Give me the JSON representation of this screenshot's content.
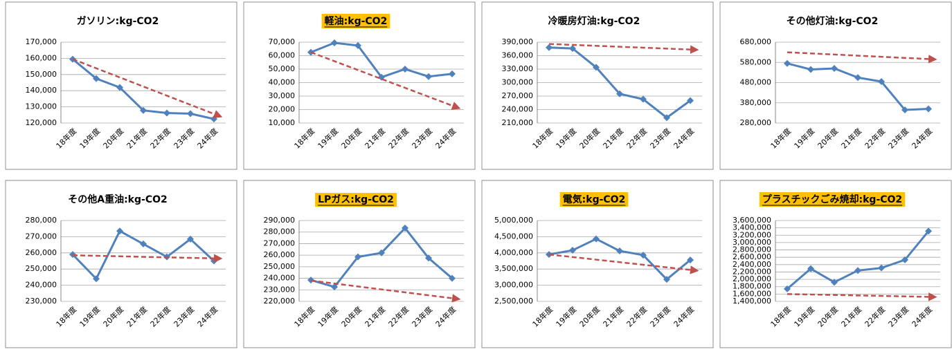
{
  "chart_data": [
    {
      "type": "line",
      "title": "ガソリン:kg-CO2",
      "highlight": false,
      "categories": [
        "18年度",
        "19年度",
        "20年度",
        "21年度",
        "22年度",
        "23年度",
        "24年度"
      ],
      "values": [
        159500,
        147500,
        142000,
        127800,
        126200,
        125800,
        122500
      ],
      "color": "#4f81bd",
      "trend": {
        "color": "#c0504d",
        "values": [
          159500,
          124000
        ]
      },
      "ylim": [
        120000,
        170000
      ],
      "yticks": [
        {
          "value": 120000,
          "label": "120,000"
        },
        {
          "value": 130000,
          "label": "130,000"
        },
        {
          "value": 140000,
          "label": "140,000"
        },
        {
          "value": 150000,
          "label": "150,000"
        },
        {
          "value": 160000,
          "label": "160,000"
        },
        {
          "value": 170000,
          "label": "170,000"
        }
      ],
      "grid": true
    },
    {
      "type": "line",
      "title": "軽油:kg-CO2",
      "highlight": true,
      "categories": [
        "18年度",
        "19年度",
        "20年度",
        "21年度",
        "22年度",
        "23年度",
        "24年度"
      ],
      "values": [
        62500,
        69500,
        67500,
        44000,
        50000,
        44500,
        46500
      ],
      "color": "#4f81bd",
      "trend": {
        "color": "#c0504d",
        "values": [
          62500,
          21000
        ]
      },
      "ylim": [
        10000,
        70000
      ],
      "yticks": [
        {
          "value": 10000,
          "label": "10,000"
        },
        {
          "value": 20000,
          "label": "20,000"
        },
        {
          "value": 30000,
          "label": "30,000"
        },
        {
          "value": 40000,
          "label": "40,000"
        },
        {
          "value": 50000,
          "label": "50,000"
        },
        {
          "value": 60000,
          "label": "60,000"
        },
        {
          "value": 70000,
          "label": "70,000"
        }
      ],
      "grid": true
    },
    {
      "type": "line",
      "title": "冷暖房灯油:kg-CO2",
      "highlight": false,
      "categories": [
        "18年度",
        "19年度",
        "20年度",
        "21年度",
        "22年度",
        "23年度",
        "24年度"
      ],
      "values": [
        378000,
        376000,
        334000,
        275000,
        263000,
        222000,
        260000
      ],
      "color": "#4f81bd",
      "trend": {
        "color": "#c0504d",
        "values": [
          386000,
          373000
        ]
      },
      "ylim": [
        210000,
        390000
      ],
      "yticks": [
        {
          "value": 210000,
          "label": "210,000"
        },
        {
          "value": 240000,
          "label": "240,000"
        },
        {
          "value": 270000,
          "label": "270,000"
        },
        {
          "value": 300000,
          "label": "300,000"
        },
        {
          "value": 330000,
          "label": "330,000"
        },
        {
          "value": 360000,
          "label": "360,000"
        },
        {
          "value": 390000,
          "label": "390,000"
        }
      ],
      "grid": true
    },
    {
      "type": "line",
      "title": "その他灯油:kg-CO2",
      "highlight": false,
      "categories": [
        "18年度",
        "19年度",
        "20年度",
        "21年度",
        "22年度",
        "23年度",
        "24年度"
      ],
      "values": [
        575000,
        545000,
        550000,
        505000,
        485000,
        345000,
        350000
      ],
      "color": "#4f81bd",
      "trend": {
        "color": "#c0504d",
        "values": [
          630000,
          595000
        ]
      },
      "ylim": [
        280000,
        680000
      ],
      "yticks": [
        {
          "value": 280000,
          "label": "280,000"
        },
        {
          "value": 380000,
          "label": "380,000"
        },
        {
          "value": 480000,
          "label": "480,000"
        },
        {
          "value": 580000,
          "label": "580,000"
        },
        {
          "value": 680000,
          "label": "680,000"
        }
      ],
      "grid": true
    },
    {
      "type": "line",
      "title": "その他A重油:kg-CO2",
      "highlight": false,
      "categories": [
        "18年度",
        "19年度",
        "20年度",
        "21年度",
        "22年度",
        "23年度",
        "24年度"
      ],
      "values": [
        259000,
        244000,
        273500,
        265500,
        257500,
        268500,
        255000
      ],
      "color": "#4f81bd",
      "trend": {
        "color": "#c0504d",
        "values": [
          258500,
          256500
        ]
      },
      "ylim": [
        230000,
        280000
      ],
      "yticks": [
        {
          "value": 230000,
          "label": "230,000"
        },
        {
          "value": 240000,
          "label": "240,000"
        },
        {
          "value": 250000,
          "label": "250,000"
        },
        {
          "value": 260000,
          "label": "260,000"
        },
        {
          "value": 270000,
          "label": "270,000"
        },
        {
          "value": 280000,
          "label": "280,000"
        }
      ],
      "grid": true
    },
    {
      "type": "line",
      "title": "LPガス:kg-CO2",
      "highlight": true,
      "categories": [
        "18年度",
        "19年度",
        "20年度",
        "21年度",
        "22年度",
        "23年度",
        "24年度"
      ],
      "values": [
        238500,
        232500,
        258500,
        262000,
        283500,
        257500,
        240000
      ],
      "color": "#4f81bd",
      "trend": {
        "color": "#c0504d",
        "values": [
          238000,
          222000
        ]
      },
      "ylim": [
        220000,
        290000
      ],
      "yticks": [
        {
          "value": 220000,
          "label": "220,000"
        },
        {
          "value": 230000,
          "label": "230,000"
        },
        {
          "value": 240000,
          "label": "240,000"
        },
        {
          "value": 250000,
          "label": "250,000"
        },
        {
          "value": 260000,
          "label": "260,000"
        },
        {
          "value": 270000,
          "label": "270,000"
        },
        {
          "value": 280000,
          "label": "280,000"
        },
        {
          "value": 290000,
          "label": "290,000"
        }
      ],
      "grid": true
    },
    {
      "type": "line",
      "title": "電気:kg-CO2",
      "highlight": true,
      "categories": [
        "18年度",
        "19年度",
        "20年度",
        "21年度",
        "22年度",
        "23年度",
        "24年度"
      ],
      "values": [
        3950000,
        4080000,
        4430000,
        4060000,
        3930000,
        3180000,
        3780000
      ],
      "color": "#4f81bd",
      "trend": {
        "color": "#c0504d",
        "values": [
          3950000,
          3450000
        ]
      },
      "ylim": [
        2500000,
        5000000
      ],
      "yticks": [
        {
          "value": 2500000,
          "label": "2,500,000"
        },
        {
          "value": 3000000,
          "label": "3,000,000"
        },
        {
          "value": 3500000,
          "label": "3,500,000"
        },
        {
          "value": 4000000,
          "label": "4,000,000"
        },
        {
          "value": 4500000,
          "label": "4,500,000"
        },
        {
          "value": 5000000,
          "label": "5,000,000"
        }
      ],
      "grid": true
    },
    {
      "type": "line",
      "title": "プラスチックごみ焼却:kg-CO2",
      "highlight": true,
      "categories": [
        "18年度",
        "19年度",
        "20年度",
        "21年度",
        "22年度",
        "23年度",
        "24年度"
      ],
      "values": [
        1740000,
        2290000,
        1920000,
        2240000,
        2310000,
        2530000,
        3310000
      ],
      "color": "#4f81bd",
      "trend": {
        "color": "#c0504d",
        "values": [
          1600000,
          1520000
        ]
      },
      "ylim": [
        1400000,
        3600000
      ],
      "yticks": [
        {
          "value": 1400000,
          "label": "1,400,000"
        },
        {
          "value": 1600000,
          "label": "1,600,000"
        },
        {
          "value": 1800000,
          "label": "1,800,000"
        },
        {
          "value": 2000000,
          "label": "2,000,000"
        },
        {
          "value": 2200000,
          "label": "2,200,000"
        },
        {
          "value": 2400000,
          "label": "2,400,000"
        },
        {
          "value": 2600000,
          "label": "2,600,000"
        },
        {
          "value": 2800000,
          "label": "2,800,000"
        },
        {
          "value": 3000000,
          "label": "3,000,000"
        },
        {
          "value": 3200000,
          "label": "3,200,000"
        },
        {
          "value": 3400000,
          "label": "3,400,000"
        },
        {
          "value": 3600000,
          "label": "3,600,000"
        }
      ],
      "grid": true
    }
  ]
}
